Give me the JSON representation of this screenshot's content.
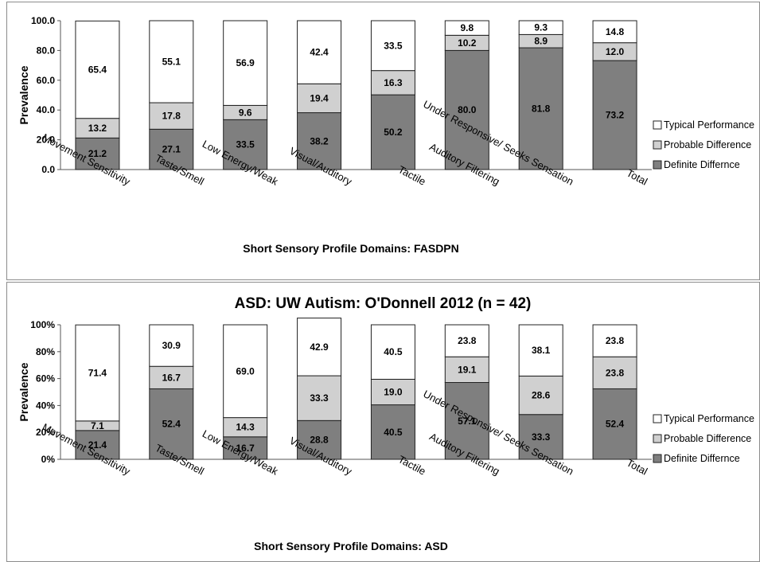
{
  "colors": {
    "definite": "#7f7f7f",
    "probable": "#d0d0d0",
    "typical": "#ffffff",
    "border": "#222222"
  },
  "chart_data": [
    {
      "type": "bar",
      "stacked": true,
      "title": "",
      "xlabel": "Short Sensory Profile Domains: FASDPN",
      "ylabel": "Prevalence",
      "ylim": [
        0,
        100
      ],
      "yticks": [
        "0.0",
        "20.0",
        "40.0",
        "60.0",
        "80.0",
        "100.0"
      ],
      "legend_position": "right",
      "categories": [
        "Movement Sensitivity",
        "Taste/Smell",
        "Low Energy/Weak",
        "Visual/Auditory",
        "Tactile",
        "Auditory Filtering",
        "Under Responsive/ Seeks Sensation",
        "Total"
      ],
      "series": [
        {
          "name": "Definite Differnce",
          "values": [
            21.2,
            27.1,
            33.5,
            38.2,
            50.2,
            80.0,
            81.8,
            73.2
          ],
          "labels": [
            "21.2",
            "27.1",
            "33.5",
            "38.2",
            "50.2",
            "80.0",
            "81.8",
            "73.2"
          ]
        },
        {
          "name": "Probable Difference",
          "values": [
            13.2,
            17.8,
            9.6,
            19.4,
            16.3,
            10.2,
            8.9,
            12.0
          ],
          "labels": [
            "13.2",
            "17.8",
            "9.6",
            "19.4",
            "16.3",
            "10.2",
            "8.9",
            "12.0"
          ]
        },
        {
          "name": "Typical Performance",
          "values": [
            65.4,
            55.1,
            56.9,
            42.4,
            33.5,
            9.8,
            9.3,
            14.8
          ],
          "labels": [
            "65.4",
            "55.1",
            "56.9",
            "42.4",
            "33.5",
            "9.8",
            "9.3",
            "14.8"
          ]
        }
      ]
    },
    {
      "type": "bar",
      "stacked": true,
      "title": "ASD: UW Autism: O'Donnell 2012 (n = 42)",
      "xlabel": "Short Sensory Profile Domains: ASD",
      "ylabel": "Prevalence",
      "ylim": [
        0,
        100
      ],
      "yticks": [
        "0%",
        "20%",
        "40%",
        "60%",
        "80%",
        "100%"
      ],
      "legend_position": "right",
      "categories": [
        "Movement Sensitivity",
        "Taste/Smell",
        "Low Energy/Weak",
        "Visual/Auditory",
        "Tactile",
        "Auditory Filtering",
        "Under Responsive/ Seeks Sensation",
        "Total"
      ],
      "series": [
        {
          "name": "Definite Differnce",
          "values": [
            21.4,
            52.4,
            16.7,
            28.8,
            40.5,
            57.1,
            33.3,
            52.4
          ],
          "labels": [
            "21.4",
            "52.4",
            "16.7",
            "28.8",
            "40.5",
            "57.1",
            "33.3",
            "52.4"
          ]
        },
        {
          "name": "Probable Difference",
          "values": [
            7.1,
            16.7,
            14.3,
            33.3,
            19.0,
            19.1,
            28.6,
            23.8
          ],
          "labels": [
            "7.1",
            "16.7",
            "14.3",
            "33.3",
            "19.0",
            "19.1",
            "28.6",
            "23.8"
          ]
        },
        {
          "name": "Typical Performance",
          "values": [
            71.4,
            30.9,
            69.0,
            42.9,
            40.5,
            23.8,
            38.1,
            23.8
          ],
          "labels": [
            "71.4",
            "30.9",
            "69.0",
            "42.9",
            "40.5",
            "23.8",
            "38.1",
            "23.8"
          ]
        }
      ]
    }
  ]
}
